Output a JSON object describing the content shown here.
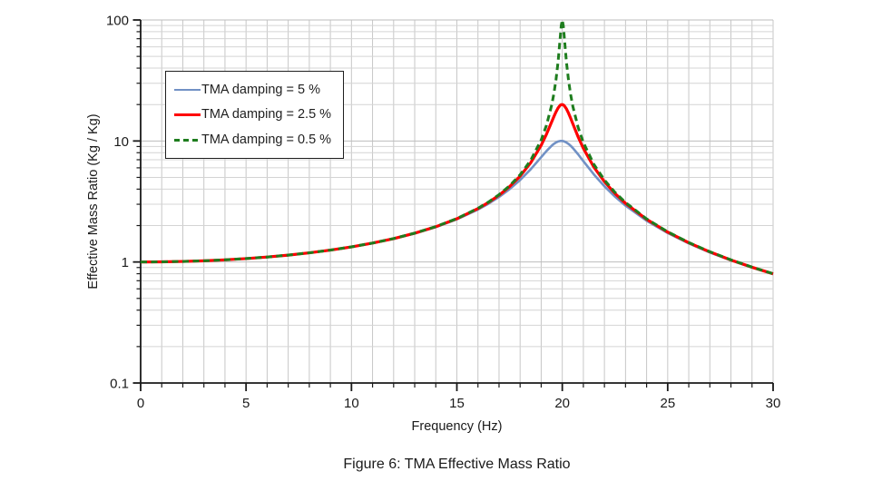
{
  "figure": {
    "caption": "Figure 6: TMA Effective Mass Ratio",
    "background": "#ffffff"
  },
  "axes": {
    "x_title": "Frequency (Hz)",
    "y_title": "Effective Mass Ratio (Kg / Kg)",
    "spine_color": "#1a1a1a",
    "grid_minor_color": "#d4d4d4",
    "grid_major_color": "#bdbdbd",
    "grid_vertical_color": "#c7c7c7"
  },
  "chart_data": {
    "type": "line",
    "title": "",
    "xlabel": "Frequency (Hz)",
    "ylabel": "Effective Mass Ratio (Kg / Kg)",
    "xlim": [
      0,
      30
    ],
    "ylim": [
      0.1,
      100
    ],
    "y_scale": "log",
    "grid": true,
    "legend_position": "upper-left-inside",
    "x_ticks": [
      0,
      5,
      10,
      15,
      20,
      25,
      30
    ],
    "x_tick_labels": [
      "0",
      "5",
      "10",
      "15",
      "20",
      "25",
      "30"
    ],
    "x_minor_step": 1,
    "y_ticks": [
      0.1,
      1,
      10,
      100
    ],
    "y_tick_labels": [
      "0.1",
      "1",
      "10",
      "100"
    ],
    "resonant_frequency_hz": 20,
    "x": [
      0,
      1,
      2,
      3,
      4,
      5,
      6,
      7,
      8,
      9,
      10,
      11,
      12,
      13,
      14,
      15,
      16,
      16.5,
      17,
      17.5,
      18,
      18.5,
      19,
      19.25,
      19.5,
      19.6,
      19.7,
      19.8,
      19.9,
      19.95,
      20,
      20.05,
      20.1,
      20.2,
      20.3,
      20.4,
      20.5,
      20.75,
      21,
      21.5,
      22,
      22.5,
      23,
      24,
      25,
      26,
      27,
      28,
      29,
      30
    ],
    "series": [
      {
        "name": "TMA damping = 5 %",
        "color": "#7191c5",
        "dash": "solid",
        "width": 2.6,
        "values": [
          1.0,
          1.0025,
          1.01,
          1.0229,
          1.0414,
          1.0663,
          1.0983,
          1.1387,
          1.1891,
          1.2519,
          1.3304,
          1.4293,
          1.5557,
          1.7207,
          1.9426,
          2.2529,
          2.7116,
          3.0316,
          3.4456,
          3.9972,
          4.7565,
          5.8321,
          7.3459,
          8.2535,
          9.15,
          9.4609,
          9.718,
          9.903,
          10.0001,
          10.0125,
          10.0,
          9.9626,
          9.9011,
          9.7106,
          9.4424,
          9.115,
          8.7474,
          7.761,
          6.815,
          5.287,
          4.2183,
          3.4666,
          2.9207,
          2.1926,
          1.7354,
          1.4242,
          1.1998,
          1.0308,
          0.8993,
          0.7943
        ]
      },
      {
        "name": "TMA damping = 2.5 %",
        "color": "#fe0000",
        "dash": "solid",
        "width": 3.2,
        "values": [
          1.0,
          1.0025,
          1.0101,
          1.023,
          1.0416,
          1.0666,
          1.0988,
          1.1394,
          1.1901,
          1.2534,
          1.3326,
          1.4326,
          1.5608,
          1.7289,
          1.9562,
          2.2774,
          2.7608,
          3.1053,
          3.5621,
          4.1942,
          5.1215,
          6.5963,
          9.2204,
          11.3724,
          14.4119,
          15.8725,
          17.3759,
          18.744,
          19.708,
          19.9504,
          20.0,
          19.8514,
          19.5159,
          18.3983,
          16.9294,
          15.3698,
          13.8816,
          10.8281,
          8.6834,
          6.0736,
          4.6065,
          3.683,
          3.0526,
          2.2519,
          1.7669,
          1.4429,
          1.2117,
          1.0389,
          0.9051,
          0.7986
        ]
      },
      {
        "name": "TMA damping = 0.5 %",
        "color": "#1e7d1e",
        "dash": "dashed",
        "width": 3.0,
        "values": [
          1.0,
          1.0025,
          1.0101,
          1.023,
          1.0417,
          1.0667,
          1.0989,
          1.1396,
          1.1905,
          1.2539,
          1.3333,
          1.4336,
          1.5624,
          1.7315,
          1.9606,
          2.2854,
          2.7771,
          3.1301,
          3.6019,
          4.2637,
          5.2573,
          6.9122,
          10.2081,
          13.4733,
          19.8693,
          24.513,
          31.8857,
          44.9914,
          70.977,
          89.645,
          100.0,
          89.241,
          70.446,
          44.4545,
          31.364,
          23.9994,
          19.3603,
          12.9689,
          9.7053,
          6.4105,
          4.7554,
          3.7613,
          3.0988,
          2.2719,
          1.7773,
          1.449,
          1.2156,
          1.0416,
          0.907,
          0.7999
        ]
      }
    ]
  }
}
